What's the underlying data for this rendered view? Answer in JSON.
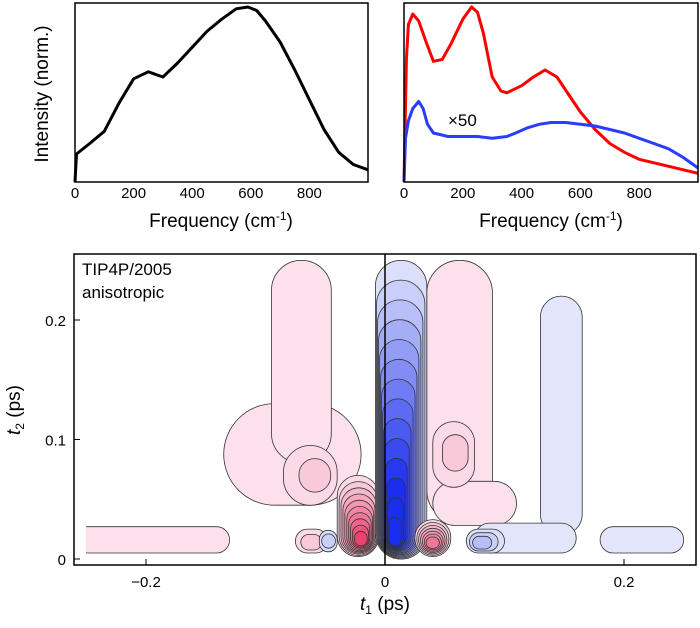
{
  "chart_data": [
    {
      "type": "line",
      "xlabel": "Frequency (cm",
      "xlabel_sup": "-1",
      "xlabel_end": ")",
      "ylabel": "Intensity (norm.)",
      "xlim": [
        0,
        1000
      ],
      "ylim": [
        0,
        1.0
      ],
      "xticks": [
        "0",
        "200",
        "400",
        "600",
        "800"
      ],
      "grid": false,
      "series": [
        {
          "color": "#000000",
          "x": [
            0,
            5,
            20,
            50,
            100,
            150,
            200,
            250,
            300,
            350,
            400,
            450,
            500,
            550,
            590,
            620,
            650,
            700,
            750,
            800,
            850,
            900,
            950,
            1000
          ],
          "y": [
            0,
            0.16,
            0.18,
            0.22,
            0.29,
            0.45,
            0.59,
            0.63,
            0.6,
            0.68,
            0.77,
            0.86,
            0.93,
            0.99,
            1.0,
            0.98,
            0.92,
            0.8,
            0.64,
            0.47,
            0.3,
            0.17,
            0.1,
            0.07
          ]
        }
      ]
    },
    {
      "type": "line",
      "xlabel": "Frequency (cm",
      "xlabel_sup": "-1",
      "xlabel_end": ")",
      "xlim": [
        0,
        1000
      ],
      "ylim": [
        0,
        1.0
      ],
      "xticks": [
        "0",
        "200",
        "400",
        "600",
        "800"
      ],
      "grid": false,
      "annotation": "×50",
      "series": [
        {
          "color": "#ff0000",
          "x": [
            0,
            8,
            15,
            30,
            50,
            75,
            100,
            130,
            160,
            200,
            230,
            250,
            270,
            300,
            330,
            350,
            400,
            440,
            480,
            520,
            560,
            600,
            650,
            700,
            750,
            800,
            850,
            900,
            950,
            1000
          ],
          "y": [
            0,
            0.7,
            0.9,
            0.96,
            0.92,
            0.8,
            0.69,
            0.7,
            0.79,
            0.93,
            1.0,
            0.97,
            0.85,
            0.6,
            0.52,
            0.51,
            0.55,
            0.6,
            0.64,
            0.6,
            0.5,
            0.4,
            0.3,
            0.22,
            0.17,
            0.13,
            0.11,
            0.09,
            0.07,
            0.05
          ]
        },
        {
          "color": "#2a3cff",
          "x": [
            0,
            5,
            15,
            30,
            50,
            65,
            80,
            100,
            150,
            200,
            250,
            300,
            350,
            380,
            420,
            460,
            500,
            550,
            600,
            650,
            700,
            750,
            800,
            850,
            900,
            950,
            1000
          ],
          "y": [
            0,
            0.25,
            0.35,
            0.42,
            0.46,
            0.42,
            0.33,
            0.28,
            0.26,
            0.26,
            0.26,
            0.25,
            0.26,
            0.28,
            0.31,
            0.33,
            0.34,
            0.34,
            0.33,
            0.32,
            0.3,
            0.28,
            0.25,
            0.22,
            0.19,
            0.14,
            0.08
          ]
        }
      ]
    },
    {
      "type": "heatmap",
      "subtype": "contour",
      "annotation_lines": [
        "TIP4P/2005",
        "anisotropic"
      ],
      "xlabel": "t",
      "xlabel_sub": "1",
      "xlabel_end": " (ps)",
      "ylabel": "t",
      "ylabel_sub": "2",
      "ylabel_end": " (ps)",
      "xlim": [
        -0.26,
        0.25
      ],
      "ylim": [
        0,
        0.25
      ],
      "xticks": [
        {
          "v": -0.2,
          "label": "−0.2"
        },
        {
          "v": 0,
          "label": "0"
        },
        {
          "v": 0.2,
          "label": "0.2"
        }
      ],
      "yticks": [
        {
          "v": 0,
          "label": "0"
        },
        {
          "v": 0.1,
          "label": "0.1"
        },
        {
          "v": 0.2,
          "label": "0.2"
        }
      ],
      "colors": {
        "positive": "#e8285a",
        "negative": "#1a2ef0",
        "positive_light": "#fdeaf3",
        "negative_light": "#eef0fb"
      },
      "features": [
        {
          "sign": 1,
          "t1": [
            -0.135,
            -0.02
          ],
          "t2": [
            0.045,
            0.13
          ],
          "peak": [
            -0.03,
            0.05
          ],
          "levels": 1
        },
        {
          "sign": 1,
          "t1": [
            -0.095,
            -0.045
          ],
          "t2": [
            0.08,
            0.25
          ],
          "peak": [
            -0.07,
            0.17
          ],
          "levels": 1
        },
        {
          "sign": 1,
          "t1": [
            0.035,
            0.09
          ],
          "t2": [
            0.03,
            0.25
          ],
          "peak": [
            0.06,
            0.1
          ],
          "levels": 1
        },
        {
          "sign": 1,
          "t1": [
            0.04,
            0.11
          ],
          "t2": [
            0.028,
            0.065
          ],
          "peak": [
            0.07,
            0.04
          ],
          "levels": 1
        },
        {
          "sign": 1,
          "t1": [
            -0.085,
            -0.04
          ],
          "t2": [
            0.045,
            0.095
          ],
          "peak": [
            -0.055,
            0.07
          ],
          "levels": 2
        },
        {
          "sign": 1,
          "t1": [
            0.04,
            0.075
          ],
          "t2": [
            0.06,
            0.115
          ],
          "peak": [
            0.06,
            0.09
          ],
          "levels": 2
        },
        {
          "sign": 1,
          "t1": [
            -0.26,
            -0.13
          ],
          "t2": [
            0.005,
            0.027
          ],
          "peak": [
            -0.2,
            0.015
          ],
          "levels": 1
        },
        {
          "sign": -1,
          "t1": [
            0.13,
            0.165
          ],
          "t2": [
            0.02,
            0.22
          ],
          "peak": [
            0.145,
            0.12
          ],
          "levels": 1
        },
        {
          "sign": -1,
          "t1": [
            0.075,
            0.16
          ],
          "t2": [
            0.005,
            0.03
          ],
          "peak": [
            0.1,
            0.015
          ],
          "levels": 1
        },
        {
          "sign": -1,
          "t1": [
            0.18,
            0.25
          ],
          "t2": [
            0.005,
            0.027
          ],
          "peak": [
            0.22,
            0.015
          ],
          "levels": 1
        },
        {
          "sign": -1,
          "t1": [
            0.068,
            0.1
          ],
          "t2": [
            0.005,
            0.025
          ],
          "peak": [
            0.08,
            0.013
          ],
          "levels": 3
        },
        {
          "sign": 1,
          "t1": [
            -0.075,
            -0.048
          ],
          "t2": [
            0.005,
            0.025
          ],
          "peak": [
            -0.062,
            0.013
          ],
          "levels": 2
        },
        {
          "sign": -1,
          "t1": [
            -0.055,
            -0.04
          ],
          "t2": [
            0.006,
            0.024
          ],
          "peak": [
            -0.047,
            0.015
          ],
          "levels": 2
        },
        {
          "sign": 1,
          "t1": [
            -0.04,
            -0.005
          ],
          "t2": [
            0.002,
            0.07
          ],
          "peak": [
            -0.02,
            0.015
          ],
          "levels": 10
        },
        {
          "sign": -1,
          "t1": [
            -0.008,
            0.035
          ],
          "t2": [
            0.0,
            0.25
          ],
          "peak": [
            0.008,
            0.015
          ],
          "levels": 14
        },
        {
          "sign": 1,
          "t1": [
            0.025,
            0.055
          ],
          "t2": [
            0.002,
            0.033
          ],
          "peak": [
            0.04,
            0.013
          ],
          "levels": 7
        }
      ]
    }
  ]
}
